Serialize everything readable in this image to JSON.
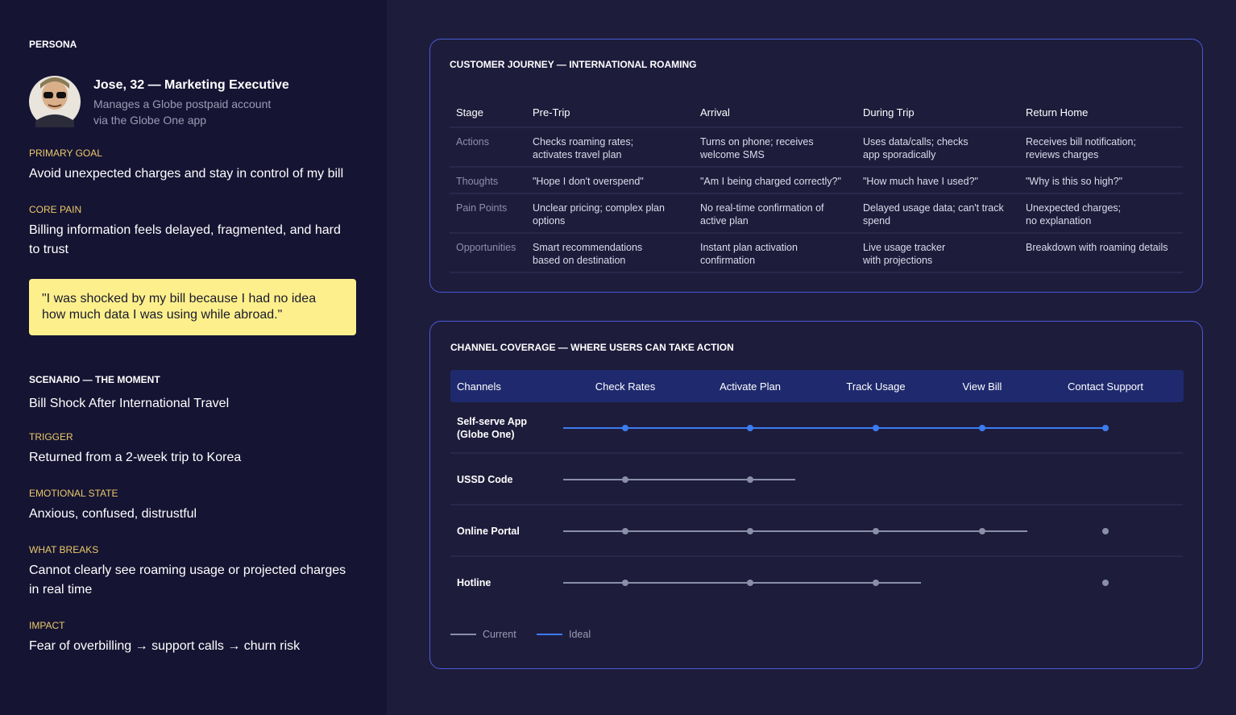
{
  "persona": {
    "heading": "PERSONA",
    "name": "Jose, 32 — Marketing Executive",
    "description": [
      "Manages a Globe postpaid account",
      "via the Globe One app"
    ],
    "sections": [
      {
        "label": "PRIMARY GOAL",
        "value": [
          "Avoid unexpected charges and stay in control of my bill"
        ]
      },
      {
        "label": "CORE PAIN",
        "value": [
          "Billing information feels delayed, fragmented, and hard",
          "to trust"
        ]
      }
    ],
    "quote": [
      "\"I was shocked by my bill because I had no idea",
      "how much data I was using while abroad.\""
    ]
  },
  "scenario": {
    "heading": "SCENARIO — THE MOMENT",
    "title": "Bill Shock After International Travel",
    "sections": [
      {
        "label": "TRIGGER",
        "value": [
          "Returned from a 2-week trip to Korea"
        ]
      },
      {
        "label": "EMOTIONAL STATE",
        "value": [
          "Anxious, confused, distrustful"
        ]
      },
      {
        "label": "WHAT BREAKS",
        "value": [
          "Cannot clearly see roaming usage or projected charges",
          "in real time"
        ]
      },
      {
        "label": "IMPACT",
        "value": [
          "Fear of overbilling → support calls → churn risk"
        ]
      }
    ]
  },
  "journey": {
    "title": "CUSTOMER JOURNEY — INTERNATIONAL ROAMING",
    "header": [
      "Stage",
      "Pre-Trip",
      "Arrival",
      "During Trip",
      "Return Home"
    ],
    "rows": [
      [
        [
          "Actions"
        ],
        [
          "Checks roaming rates;",
          "activates travel plan"
        ],
        [
          "Turns on phone; receives",
          "welcome SMS"
        ],
        [
          "Uses data/calls; checks",
          "app sporadically"
        ],
        [
          "Receives bill notification;",
          "reviews charges"
        ]
      ],
      [
        [
          "Thoughts"
        ],
        [
          "\"Hope I don't overspend\""
        ],
        [
          "\"Am I being charged correctly?\""
        ],
        [
          "\"How much have I used?\""
        ],
        [
          "\"Why is this so high?\""
        ]
      ],
      [
        [
          "Pain Points"
        ],
        [
          "Unclear pricing; complex plan",
          "options"
        ],
        [
          "No real-time confirmation of",
          "active plan"
        ],
        [
          "Delayed usage data; can't track",
          "spend"
        ],
        [
          "Unexpected charges;",
          "no explanation"
        ]
      ],
      [
        [
          "Opportunities"
        ],
        [
          "Smart recommendations",
          "based on destination"
        ],
        [
          "Instant plan activation",
          "confirmation"
        ],
        [
          "Live usage tracker",
          "with projections"
        ],
        [
          "Breakdown with roaming details"
        ]
      ]
    ]
  },
  "channels": {
    "title": "CHANNEL COVERAGE — WHERE USERS CAN TAKE ACTION",
    "header": [
      "Channels",
      "Check Rates",
      "Activate Plan",
      "Track Usage",
      "View Bill",
      "Contact Support"
    ],
    "rows": [
      {
        "name": [
          "Self-serve App",
          "(Globe One)"
        ],
        "color": "#3b7cf0",
        "coverage": [
          true,
          true,
          true,
          true,
          true
        ]
      },
      {
        "name": [
          "USSD Code"
        ],
        "color": "#8a8fa8",
        "coverage": [
          true,
          true,
          false,
          false,
          false
        ]
      },
      {
        "name": [
          "Online Portal"
        ],
        "color": "#8a8fa8",
        "coverage": [
          true,
          true,
          true,
          true,
          true
        ]
      },
      {
        "name": [
          "Hotline"
        ],
        "color": "#8a8fa8",
        "coverage": [
          true,
          true,
          true,
          false,
          true
        ]
      }
    ],
    "legend": [
      {
        "label": "Current",
        "color": "#8a8fa8"
      },
      {
        "label": "Ideal",
        "color": "#3b7cf0"
      }
    ]
  }
}
